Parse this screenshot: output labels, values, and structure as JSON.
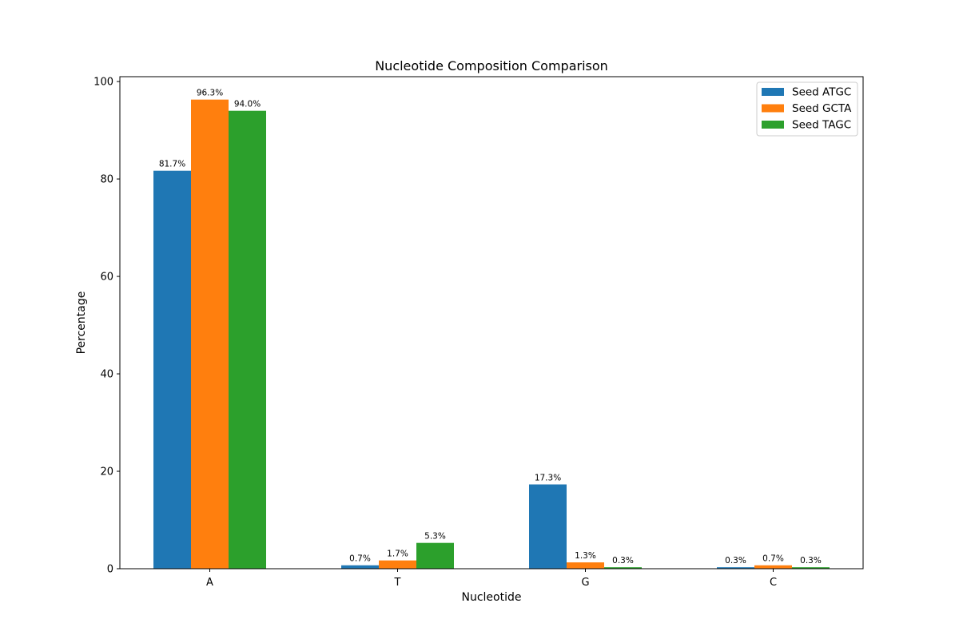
{
  "chart_data": {
    "type": "bar",
    "title": "Nucleotide Composition Comparison",
    "xlabel": "Nucleotide",
    "ylabel": "Percentage",
    "categories": [
      "A",
      "T",
      "G",
      "C"
    ],
    "ylim": [
      0,
      101
    ],
    "yticks": [
      0,
      20,
      40,
      60,
      80,
      100
    ],
    "grid": false,
    "legend_position": "top-right",
    "series": [
      {
        "name": "Seed ATGC",
        "color": "#1f77b4",
        "values": [
          81.7,
          0.7,
          17.3,
          0.3
        ],
        "labels": [
          "81.7%",
          "0.7%",
          "17.3%",
          "0.3%"
        ]
      },
      {
        "name": "Seed GCTA",
        "color": "#ff7f0e",
        "values": [
          96.3,
          1.7,
          1.3,
          0.7
        ],
        "labels": [
          "96.3%",
          "1.7%",
          "1.3%",
          "0.7%"
        ]
      },
      {
        "name": "Seed TAGC",
        "color": "#2ca02c",
        "values": [
          94.0,
          5.3,
          0.3,
          0.3
        ],
        "labels": [
          "94.0%",
          "5.3%",
          "0.3%",
          "0.3%"
        ]
      }
    ]
  }
}
